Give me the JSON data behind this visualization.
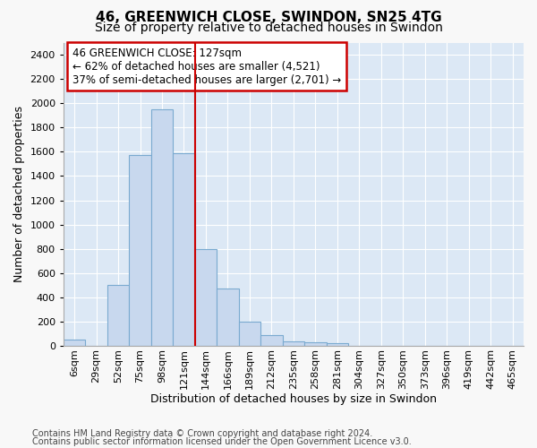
{
  "title": "46, GREENWICH CLOSE, SWINDON, SN25 4TG",
  "subtitle": "Size of property relative to detached houses in Swindon",
  "xlabel": "Distribution of detached houses by size in Swindon",
  "ylabel": "Number of detached properties",
  "categories": [
    "6sqm",
    "29sqm",
    "52sqm",
    "75sqm",
    "98sqm",
    "121sqm",
    "144sqm",
    "166sqm",
    "189sqm",
    "212sqm",
    "235sqm",
    "258sqm",
    "281sqm",
    "304sqm",
    "327sqm",
    "350sqm",
    "373sqm",
    "396sqm",
    "419sqm",
    "442sqm",
    "465sqm"
  ],
  "values": [
    50,
    0,
    500,
    1575,
    1950,
    1590,
    800,
    475,
    200,
    90,
    40,
    30,
    20,
    0,
    0,
    0,
    0,
    0,
    0,
    0,
    0
  ],
  "bar_face_color": "#c8d8ee",
  "bar_edge_color": "#7aaad0",
  "vline_color": "#cc0000",
  "vline_x_index": 5,
  "annotation_text": "46 GREENWICH CLOSE: 127sqm\n← 62% of detached houses are smaller (4,521)\n37% of semi-detached houses are larger (2,701) →",
  "annotation_box_facecolor": "#ffffff",
  "annotation_box_edgecolor": "#cc0000",
  "ylim": [
    0,
    2500
  ],
  "yticks": [
    0,
    200,
    400,
    600,
    800,
    1000,
    1200,
    1400,
    1600,
    1800,
    2000,
    2200,
    2400
  ],
  "axes_bg_color": "#dce8f5",
  "fig_bg_color": "#f8f8f8",
  "grid_color": "#ffffff",
  "title_fontsize": 11,
  "subtitle_fontsize": 10,
  "xlabel_fontsize": 9,
  "ylabel_fontsize": 9,
  "tick_fontsize": 8,
  "annotation_fontsize": 8.5,
  "footer_line1": "Contains HM Land Registry data © Crown copyright and database right 2024.",
  "footer_line2": "Contains public sector information licensed under the Open Government Licence v3.0.",
  "footer_fontsize": 7
}
